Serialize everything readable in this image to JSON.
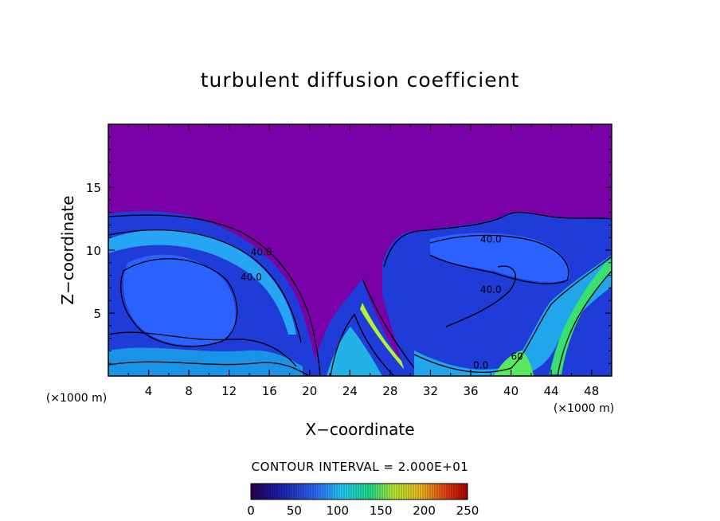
{
  "chart_data": {
    "type": "heatmap",
    "title": "turbulent diffusion coefficient",
    "xlabel": "X−coordinate",
    "ylabel": "Z−coordinate",
    "x_unit_left": "(×1000 m)",
    "x_unit_right": "(×1000 m)",
    "xlim": [
      0,
      50
    ],
    "ylim": [
      0,
      20
    ],
    "x_ticks": [
      "4",
      "8",
      "12",
      "16",
      "20",
      "24",
      "28",
      "32",
      "36",
      "40",
      "44",
      "48"
    ],
    "y_ticks": [
      "5",
      "10",
      "15"
    ],
    "contour_interval_text": "CONTOUR INTERVAL = 2.000E+01",
    "contour_labels": [
      {
        "text": "40.0",
        "x": 15.2,
        "z": 9.6
      },
      {
        "text": "40.0",
        "x": 14.2,
        "z": 7.6
      },
      {
        "text": "40.0",
        "x": 38.0,
        "z": 10.6
      },
      {
        "text": "40.0",
        "x": 38.0,
        "z": 6.6
      },
      {
        "text": "0.0",
        "x": 37.0,
        "z": 0.6
      },
      {
        "text": "60",
        "x": 40.6,
        "z": 1.3
      }
    ],
    "colorbar": {
      "min": 0,
      "max": 250,
      "ticks": [
        "0",
        "50",
        "100",
        "150",
        "200",
        "250"
      ],
      "tick_values": [
        0,
        50,
        100,
        150,
        200,
        250
      ]
    },
    "background_color": "#7a00a8",
    "grid": false
  }
}
